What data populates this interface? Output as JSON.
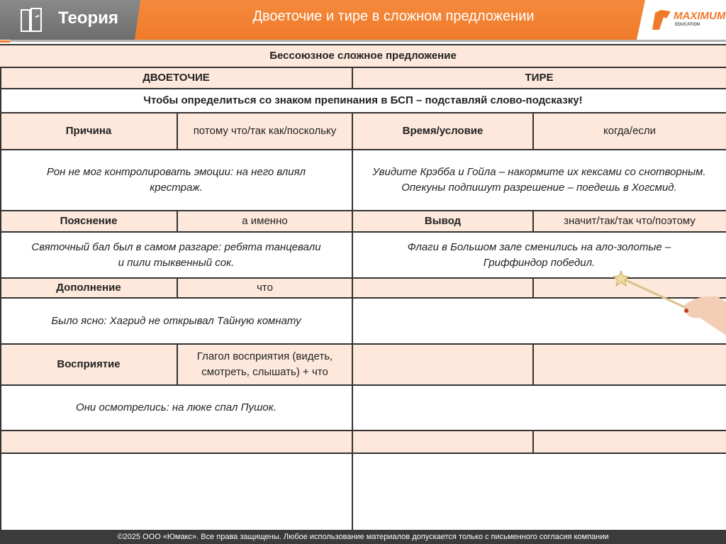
{
  "header": {
    "section": "Теория",
    "title": "Двоеточие и тире в сложном предложении",
    "logo_text": "MAXIMUM",
    "logo_sub": "EDUCATION",
    "accent_color": "#ef7a2a"
  },
  "table": {
    "caption": "Бессоюзное сложное предложение",
    "col_left": "ДВОЕТОЧИЕ",
    "col_right": "ТИРЕ",
    "hint": "Чтобы определиться со знаком препинания в БСП – подставляй слово-подсказку!",
    "rows": [
      {
        "l_label": "Причина",
        "l_words": "потому что/так как/поскольку",
        "r_label": "Время/условие",
        "r_words": "когда/если",
        "l_example": "Рон не мог контролировать эмоции: на него влиял крестраж.",
        "r_example": "Увидите Крэбба и Гойла – накормите их кексами со снотворным.\nОпекуны подпишут разрешение – поедешь в Хогсмид."
      },
      {
        "l_label": "Пояснение",
        "l_words": "а именно",
        "r_label": "Вывод",
        "r_words": "значит/так/так что/поэтому",
        "l_example": "Святочный бал был в самом разгаре: ребята танцевали и пили тыквенный сок.",
        "r_example": "Флаги в Большом зале сменились на ало-золотые – Гриффиндор победил."
      },
      {
        "l_label": "Дополнение",
        "l_words": "что",
        "r_label": "",
        "r_words": "",
        "l_example": "Было ясно: Хагрид не открывал Тайную комнату",
        "r_example": ""
      },
      {
        "l_label": "Восприятие",
        "l_words": "Глагол восприятия (видеть, смотреть, слышать) + что",
        "r_label": "",
        "r_words": "",
        "l_example": "Они осмотрелись: на люке спал Пушок.",
        "r_example": ""
      }
    ]
  },
  "footer": {
    "text": "©2025 ООО «Юмакс». Все права защищены. Любое использование материалов допускается только с  письменного согласия компании"
  }
}
